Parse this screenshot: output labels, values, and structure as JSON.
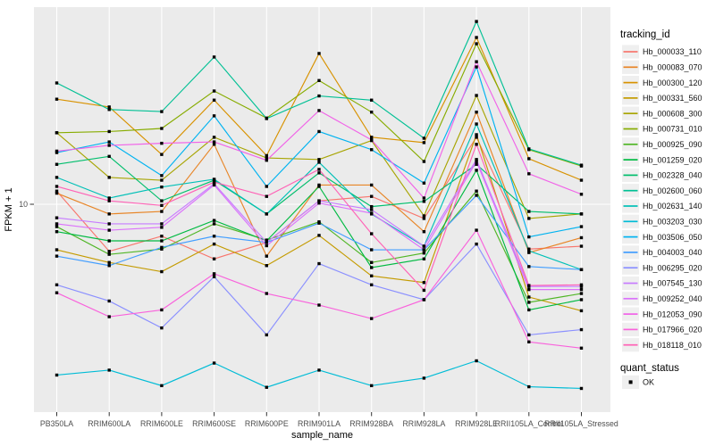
{
  "chart_data": {
    "type": "line",
    "title": "",
    "xlabel": "sample_name",
    "ylabel": "FPKM + 1",
    "x_categories": [
      "PB350LA",
      "RRIM600LA",
      "RRIM600LE",
      "RRIM600SE",
      "RRIM600PE",
      "RRIM901LA",
      "RRIM928BA",
      "RRIM928LA",
      "RRIM928LE",
      "RRII105LA_Control",
      "RRII105LA_Stressed"
    ],
    "y_scale": "log10",
    "y_ticks": [
      10
    ],
    "ylim_approx": [
      1.9,
      50
    ],
    "grid": "major-on",
    "marker": "filled-square",
    "legend": {
      "title": "tracking_id",
      "position": "right"
    },
    "legend2": {
      "title": "quant_status",
      "items": [
        "OK"
      ]
    },
    "style": {
      "panel_bg": "#EBEBEB",
      "grid_color": "#FFFFFF",
      "axis_text": "#4D4D4D",
      "tick_color": "#333333",
      "point_color": "#000000",
      "key_fill": "#EFEFEF",
      "title_color": "#000000"
    },
    "series": [
      {
        "name": "Hb_000033_110",
        "color": "#F8766D",
        "values": [
          11.2,
          6.67,
          7.6,
          6.25,
          7.2,
          10.3,
          10.7,
          8.85,
          17.8,
          6.8,
          6.97
        ]
      },
      {
        "name": "Hb_000083_070",
        "color": "#E88526",
        "values": [
          11.0,
          9.2,
          9.4,
          16.75,
          6.4,
          11.8,
          11.8,
          7.9,
          22.1,
          6.6,
          7.5
        ]
      },
      {
        "name": "Hb_000300_120",
        "color": "#D89200",
        "values": [
          24.7,
          23.1,
          15.35,
          24.5,
          15.2,
          36.6,
          17.8,
          17.0,
          42.0,
          14.8,
          12.3
        ]
      },
      {
        "name": "Hb_000331_560",
        "color": "#C49B00",
        "values": [
          6.76,
          6.06,
          5.6,
          7.1,
          5.9,
          7.65,
          5.4,
          5.1,
          18.2,
          4.5,
          4.0
        ]
      },
      {
        "name": "Hb_000608_300",
        "color": "#A8A503",
        "values": [
          18.5,
          12.6,
          12.3,
          17.8,
          14.9,
          14.7,
          17.3,
          9.05,
          25.5,
          8.85,
          9.2
        ]
      },
      {
        "name": "Hb_000731_010",
        "color": "#87AC00",
        "values": [
          18.5,
          18.7,
          19.2,
          26.5,
          21.0,
          29.0,
          22.1,
          14.45,
          39.8,
          16.0,
          13.9
        ]
      },
      {
        "name": "Hb_000925_090",
        "color": "#50B626",
        "values": [
          8.25,
          6.5,
          6.8,
          8.45,
          7.35,
          8.6,
          6.06,
          6.57,
          11.2,
          4.3,
          4.64
        ]
      },
      {
        "name": "Hb_001259_020",
        "color": "#00BA42",
        "values": [
          7.9,
          7.3,
          7.3,
          8.7,
          7.3,
          11.66,
          5.8,
          6.25,
          13.4,
          4.03,
          4.4
        ]
      },
      {
        "name": "Hb_002328_040",
        "color": "#00BE6C",
        "values": [
          14.1,
          15.1,
          10.3,
          12.3,
          9.2,
          13.1,
          9.8,
          10.25,
          14.1,
          9.4,
          9.2
        ]
      },
      {
        "name": "Hb_002600_060",
        "color": "#00C094",
        "values": [
          28.4,
          22.6,
          22.2,
          35.5,
          20.9,
          25.4,
          24.5,
          17.65,
          48.2,
          16.1,
          14.0
        ]
      },
      {
        "name": "Hb_002631_140",
        "color": "#00C0B7",
        "values": [
          12.6,
          10.55,
          11.6,
          12.4,
          9.2,
          14.35,
          9.2,
          6.97,
          19.95,
          6.7,
          5.7
        ]
      },
      {
        "name": "Hb_003203_030",
        "color": "#00BCD6",
        "values": [
          2.3,
          2.4,
          2.1,
          2.55,
          2.07,
          2.4,
          2.1,
          2.24,
          2.6,
          2.08,
          2.05
        ]
      },
      {
        "name": "Hb_003506_050",
        "color": "#00B3F0",
        "values": [
          15.6,
          17.1,
          12.8,
          21.4,
          11.66,
          18.7,
          16.0,
          12.0,
          32.6,
          7.55,
          8.25
        ]
      },
      {
        "name": "Hb_004003_040",
        "color": "#429EFF",
        "values": [
          6.4,
          5.9,
          6.9,
          7.6,
          7.2,
          8.5,
          6.76,
          6.76,
          10.8,
          5.85,
          5.7
        ]
      },
      {
        "name": "Hb_006295_020",
        "color": "#8B90FF",
        "values": [
          5.0,
          4.35,
          3.45,
          5.36,
          3.25,
          6.0,
          5.0,
          4.4,
          7.1,
          3.25,
          3.4
        ]
      },
      {
        "name": "Hb_007545_130",
        "color": "#C77CFF",
        "values": [
          8.9,
          8.45,
          8.45,
          11.93,
          7.2,
          10.3,
          9.55,
          6.97,
          14.7,
          4.93,
          4.93
        ]
      },
      {
        "name": "Hb_009252_040",
        "color": "#DB72FB",
        "values": [
          8.45,
          8.0,
          8.2,
          11.8,
          7.0,
          10.1,
          9.26,
          6.76,
          14.45,
          4.8,
          4.8
        ]
      },
      {
        "name": "Hb_012053_090",
        "color": "#F163E8",
        "values": [
          15.8,
          16.6,
          16.9,
          17.1,
          14.6,
          22.4,
          17.4,
          10.55,
          34.1,
          13.0,
          10.9
        ]
      },
      {
        "name": "Hb_017966_020",
        "color": "#F962DC",
        "values": [
          4.67,
          3.8,
          4.03,
          5.5,
          4.64,
          4.2,
          3.74,
          4.4,
          8.0,
          3.06,
          2.9
        ]
      },
      {
        "name": "Hb_018118_010",
        "color": "#FF62B6",
        "values": [
          11.66,
          10.3,
          9.9,
          12.1,
          10.7,
          13.5,
          7.76,
          4.77,
          16.75,
          4.97,
          5.0
        ]
      }
    ]
  }
}
